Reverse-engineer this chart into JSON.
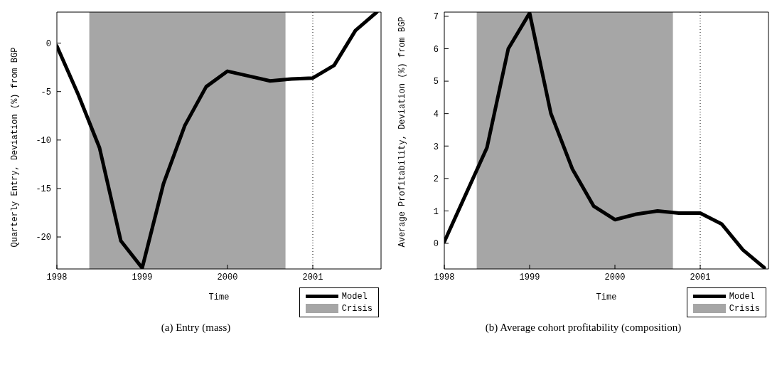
{
  "chart_data": [
    {
      "type": "line",
      "title": "(a) Entry (mass)",
      "xlabel": "Time",
      "ylabel": "Quarterly Entry, Deviation (%) from BGP",
      "x": [
        1998,
        1998.25,
        1998.5,
        1998.75,
        1999,
        1999.25,
        1999.5,
        1999.75,
        2000,
        2000.25,
        2000.5,
        2000.75,
        2001,
        2001.25,
        2001.5,
        2001.75
      ],
      "series": [
        {
          "name": "Model",
          "color": "#000000",
          "values": [
            -0.3,
            -5.3,
            -10.8,
            -20.4,
            -23.2,
            -14.5,
            -8.5,
            -4.5,
            -2.9,
            -3.4,
            -3.9,
            -3.7,
            -3.6,
            -2.3,
            1.3,
            3.2
          ]
        }
      ],
      "xlim": [
        1998,
        2001.8
      ],
      "xticks": [
        1998,
        1999,
        2000,
        2001
      ],
      "ylim": [
        -23.3,
        3.2
      ],
      "yticks": [
        -20,
        -15,
        -10,
        -5,
        0
      ],
      "bands": [
        {
          "axis": "x",
          "from": 1998.38,
          "to": 2000.68,
          "label": "Crisis",
          "color": "#a6a6a6"
        }
      ],
      "ref_lines": [
        {
          "axis": "x",
          "value": 2001,
          "label": null,
          "color": "#000000",
          "line_style": "dotted"
        }
      ],
      "legend": "bottom right",
      "marker": "none",
      "line_style": "solid",
      "grid": false
    },
    {
      "type": "line",
      "title": "(b) Average cohort profitability (composition)",
      "xlabel": "Time",
      "ylabel": "Average Profitability, Deviation (%) from BGP",
      "x": [
        1998,
        1998.25,
        1998.5,
        1998.75,
        1999,
        1999.25,
        1999.5,
        1999.75,
        2000,
        2000.25,
        2000.5,
        2000.75,
        2001,
        2001.25,
        2001.5,
        2001.75
      ],
      "series": [
        {
          "name": "Model",
          "color": "#000000",
          "values": [
            0.05,
            1.5,
            2.95,
            6.0,
            7.1,
            4.0,
            2.3,
            1.15,
            0.73,
            0.9,
            1.0,
            0.93,
            0.93,
            0.6,
            -0.2,
            -0.75
          ]
        }
      ],
      "xlim": [
        1998,
        2001.8
      ],
      "xticks": [
        1998,
        1999,
        2000,
        2001
      ],
      "ylim": [
        -0.79,
        7.13
      ],
      "yticks": [
        0,
        1,
        2,
        3,
        4,
        5,
        6,
        7
      ],
      "bands": [
        {
          "axis": "x",
          "from": 1998.38,
          "to": 2000.68,
          "label": "Crisis",
          "color": "#a6a6a6"
        }
      ],
      "ref_lines": [
        {
          "axis": "x",
          "value": 2001,
          "label": null,
          "color": "#000000",
          "line_style": "dotted"
        }
      ],
      "legend": "bottom right",
      "marker": "none",
      "line_style": "solid",
      "grid": false
    }
  ]
}
